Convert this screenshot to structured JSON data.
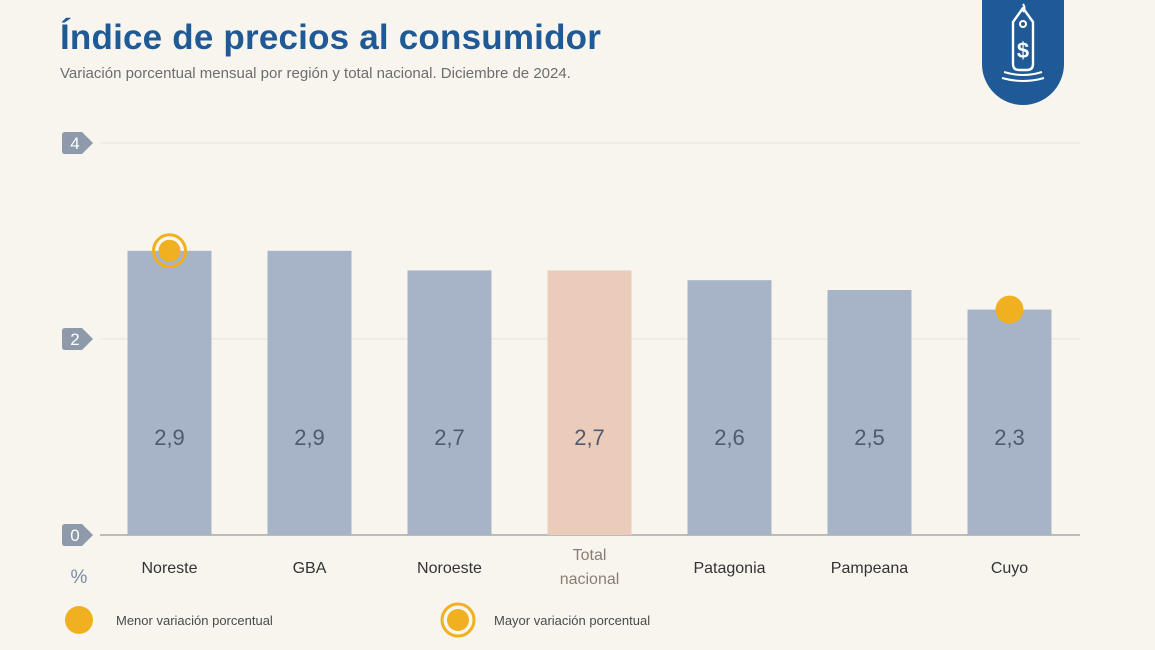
{
  "header": {
    "title": "Índice de precios al consumidor",
    "subtitle": "Variación porcentual mensual por región y total nacional. Diciembre de 2024.",
    "badge_icon": "price-tag-dollar-icon"
  },
  "colors": {
    "title": "#1f5a96",
    "bar": "#a7b3c7",
    "bar_total": "#ebccbb",
    "marker": "#f0b020",
    "axis_badge": "#8e99aa",
    "badge_bg": "#1f5a96"
  },
  "chart_data": {
    "type": "bar",
    "title": "Índice de precios al consumidor",
    "subtitle": "Variación porcentual mensual por región y total nacional. Diciembre de 2024.",
    "categories": [
      "Noreste",
      "GBA",
      "Noroeste",
      "Total nacional",
      "Patagonia",
      "Pampeana",
      "Cuyo"
    ],
    "category_lines": [
      [
        "Noreste"
      ],
      [
        "GBA"
      ],
      [
        "Noroeste"
      ],
      [
        "Total",
        "nacional"
      ],
      [
        "Patagonia"
      ],
      [
        "Pampeana"
      ],
      [
        "Cuyo"
      ]
    ],
    "values": [
      2.9,
      2.9,
      2.7,
      2.7,
      2.6,
      2.5,
      2.3
    ],
    "value_labels": [
      "2,9",
      "2,9",
      "2,7",
      "2,7",
      "2,6",
      "2,5",
      "2,3"
    ],
    "highlight_index": 3,
    "ylim": [
      0,
      4
    ],
    "yticks": [
      0,
      2,
      4
    ],
    "ylabel": "%",
    "grid": true,
    "markers": [
      {
        "category_index": 0,
        "kind": "max"
      },
      {
        "category_index": 6,
        "kind": "min"
      }
    ],
    "legend": [
      {
        "kind": "min",
        "label": "Menor variación porcentual"
      },
      {
        "kind": "max",
        "label": "Mayor variación porcentual"
      }
    ],
    "legend_position": "bottom-left"
  }
}
